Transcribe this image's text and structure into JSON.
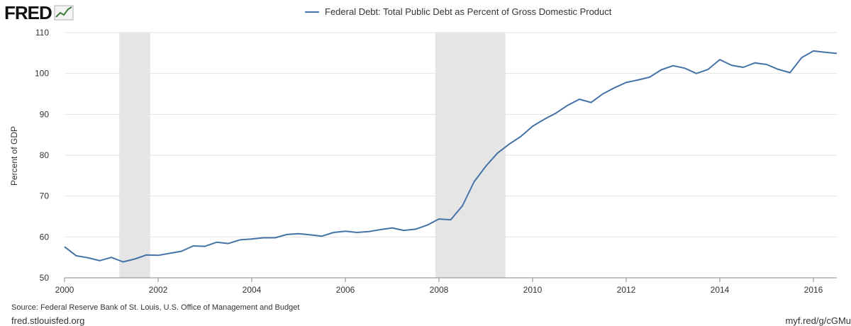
{
  "logo": {
    "text": "FRED",
    "icon": "line-chart-icon"
  },
  "source": "Source: Federal Reserve Bank of St. Louis, U.S. Office of Management and Budget",
  "footer": {
    "left": "fred.stlouisfed.org",
    "right": "myf.red/g/cGMu"
  },
  "colors": {
    "series": "#4572A7",
    "recession": "#e5e5e5",
    "grid": "#e3e3e3"
  },
  "chart_data": {
    "type": "line",
    "title": "",
    "xlabel": "",
    "ylabel": "Percent of GDP",
    "xlim": [
      2000.0,
      2016.5
    ],
    "ylim": [
      50,
      110
    ],
    "x_ticks": [
      2000,
      2002,
      2004,
      2006,
      2008,
      2010,
      2012,
      2014,
      2016
    ],
    "y_ticks": [
      50,
      60,
      70,
      80,
      90,
      100,
      110
    ],
    "grid": "horizontal",
    "legend_position": "top-center",
    "recessions": [
      [
        2001.17,
        2001.83
      ],
      [
        2007.92,
        2009.42
      ]
    ],
    "series": [
      {
        "name": "Federal Debt: Total Public Debt as Percent of Gross Domestic Product",
        "x": [
          2000.0,
          2000.25,
          2000.5,
          2000.75,
          2001.0,
          2001.25,
          2001.5,
          2001.75,
          2002.0,
          2002.25,
          2002.5,
          2002.75,
          2003.0,
          2003.25,
          2003.5,
          2003.75,
          2004.0,
          2004.25,
          2004.5,
          2004.75,
          2005.0,
          2005.25,
          2005.5,
          2005.75,
          2006.0,
          2006.25,
          2006.5,
          2006.75,
          2007.0,
          2007.25,
          2007.5,
          2007.75,
          2008.0,
          2008.25,
          2008.5,
          2008.75,
          2009.0,
          2009.25,
          2009.5,
          2009.75,
          2010.0,
          2010.25,
          2010.5,
          2010.75,
          2011.0,
          2011.25,
          2011.5,
          2011.75,
          2012.0,
          2012.25,
          2012.5,
          2012.75,
          2013.0,
          2013.25,
          2013.5,
          2013.75,
          2014.0,
          2014.25,
          2014.5,
          2014.75,
          2015.0,
          2015.25,
          2015.5,
          2015.75,
          2016.0,
          2016.25,
          2016.5
        ],
        "values": [
          57.6,
          55.4,
          54.9,
          54.2,
          55.0,
          53.9,
          54.6,
          55.6,
          55.5,
          56.0,
          56.5,
          57.8,
          57.7,
          58.7,
          58.4,
          59.3,
          59.5,
          59.8,
          59.8,
          60.6,
          60.8,
          60.5,
          60.2,
          61.1,
          61.4,
          61.1,
          61.3,
          61.8,
          62.2,
          61.6,
          61.9,
          62.9,
          64.4,
          64.2,
          67.6,
          73.5,
          77.3,
          80.5,
          82.7,
          84.6,
          87.1,
          88.8,
          90.3,
          92.2,
          93.7,
          92.9,
          95.0,
          96.5,
          97.8,
          98.4,
          99.1,
          100.9,
          101.9,
          101.3,
          100.0,
          101.0,
          103.4,
          102.0,
          101.5,
          102.6,
          102.2,
          101.0,
          100.2,
          103.9,
          105.5,
          105.2,
          104.9
        ]
      }
    ]
  }
}
